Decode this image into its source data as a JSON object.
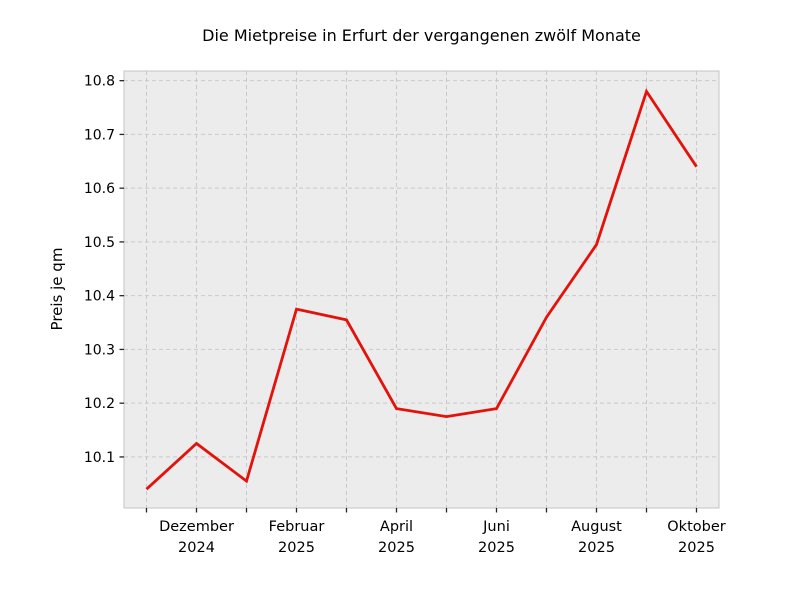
{
  "chart_data": {
    "type": "line",
    "title": "Die Mietpreise in Erfurt der vergangenen zwölf Monate",
    "xlabel": "",
    "ylabel": "Preis je qm",
    "x": [
      "November 2024",
      "Dezember 2024",
      "Januar 2025",
      "Februar 2025",
      "März 2025",
      "April 2025",
      "Mai 2025",
      "Juni 2025",
      "Juli 2025",
      "August 2025",
      "September 2025",
      "Oktober 2025"
    ],
    "values": [
      10.04,
      10.125,
      10.055,
      10.375,
      10.355,
      10.19,
      10.175,
      10.19,
      10.36,
      10.495,
      10.78,
      10.64
    ],
    "series_name": "Preis je qm",
    "y_ticks": [
      10.1,
      10.2,
      10.3,
      10.4,
      10.5,
      10.6,
      10.7,
      10.8
    ],
    "y_tick_format_decimals": 1,
    "x_tick_labels": [
      {
        "index": 1,
        "line1": "Dezember",
        "line2": "2024"
      },
      {
        "index": 3,
        "line1": "Februar",
        "line2": "2025"
      },
      {
        "index": 5,
        "line1": "April",
        "line2": "2025"
      },
      {
        "index": 7,
        "line1": "Juni",
        "line2": "2025"
      },
      {
        "index": 9,
        "line1": "August",
        "line2": "2025"
      },
      {
        "index": 11,
        "line1": "Oktober",
        "line2": "2025"
      }
    ],
    "ylim": [
      10.005,
      10.818
    ],
    "grid": "dashed, both axes, every month and every 0.1",
    "legend": "none",
    "colors": {
      "line": "#e3120b",
      "plot_background": "#ececec",
      "grid": "#c9c9c9",
      "spine": "#c4c4c4",
      "tick": "#262626",
      "text": "#000000",
      "page_background": "#ffffff"
    },
    "line_width": 2.8
  }
}
